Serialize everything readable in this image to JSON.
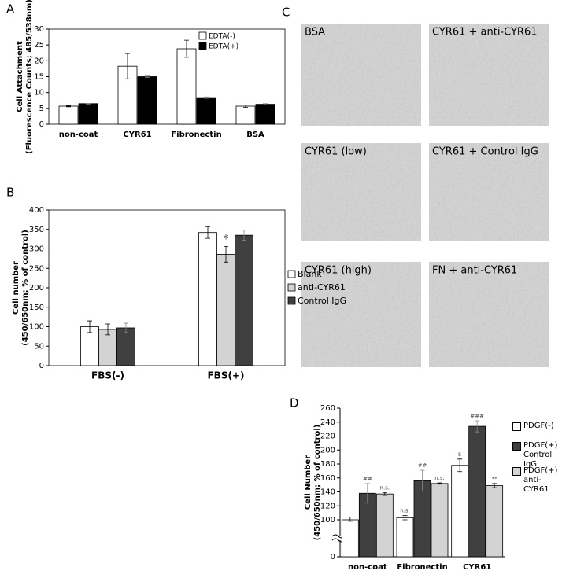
{
  "chart_data": [
    {
      "type": "bar",
      "panel": "A",
      "categories": [
        "non-coat",
        "CYR61",
        "Fibronectin",
        "BSA"
      ],
      "series": [
        {
          "name": "EDTA(-)",
          "color": "#ffffff",
          "values": [
            5.7,
            18.3,
            23.8,
            5.7
          ],
          "errors": [
            0.2,
            4,
            2.7,
            0.4
          ]
        },
        {
          "name": "EDTA(+)",
          "color": "#000000",
          "values": [
            6.5,
            15.0,
            8.4,
            6.3
          ],
          "errors": [
            0.1,
            0.2,
            0.2,
            0.2
          ]
        }
      ],
      "ylabel": [
        "Cell Attachment",
        "(Fluorescence Counts; 485/538nm)"
      ],
      "ylim": [
        0,
        30
      ],
      "yticks": [
        0,
        5,
        10,
        15,
        20,
        25,
        30
      ],
      "frame": true,
      "legend": "top-right"
    },
    {
      "type": "bar",
      "panel": "B",
      "categories": [
        "FBS(-)",
        "FBS(+)"
      ],
      "series": [
        {
          "name": "Blank",
          "color": "#ffffff",
          "values": [
            100,
            342
          ],
          "errors": [
            15,
            15
          ]
        },
        {
          "name": "anti-CYR61",
          "color": "#d3d3d3",
          "values": [
            93,
            286
          ],
          "errors": [
            14,
            20
          ],
          "annotations": [
            null,
            "*"
          ]
        },
        {
          "name": "Control IgG",
          "color": "#404040",
          "values": [
            97,
            335
          ],
          "errors": [
            12,
            13
          ]
        }
      ],
      "ylabel": [
        "Cell number",
        "(450/650nm; % of control)"
      ],
      "ylim": [
        0,
        400
      ],
      "yticks": [
        0,
        50,
        100,
        150,
        200,
        250,
        300,
        350,
        400
      ],
      "frame": true,
      "legend": "right"
    },
    {
      "type": "bar",
      "panel": "D",
      "categories": [
        "non-coat",
        "Fibronectin",
        "CYR61"
      ],
      "series": [
        {
          "name": "PDGF(-)",
          "color": "#ffffff",
          "values": [
            100,
            103,
            178
          ],
          "errors": [
            4,
            3,
            9
          ],
          "annotations": [
            null,
            "n.s.",
            "$"
          ]
        },
        {
          "name": "PDGF(+) Control IgG",
          "color": "#404040",
          "values": [
            138,
            156,
            234
          ],
          "errors": [
            14,
            15,
            8
          ],
          "annotations": [
            "##",
            "##",
            "###"
          ]
        },
        {
          "name": "PDGF(+) anti-CYR61",
          "color": "#d3d3d3",
          "values": [
            137,
            152,
            149
          ],
          "errors": [
            2,
            1,
            3
          ],
          "annotations": [
            "n.s.",
            "n.s.",
            "**"
          ]
        }
      ],
      "ylabel": [
        "Cell Number",
        "(450/650nm; % of control)"
      ],
      "ylim": [
        0,
        260
      ],
      "yticks": [
        0,
        100,
        120,
        140,
        160,
        180,
        200,
        220,
        240,
        260
      ],
      "axis_break": true,
      "frame": false,
      "legend": "right"
    }
  ],
  "panel_c": {
    "label": "C",
    "images": [
      "BSA",
      "CYR61 + anti-CYR61",
      "CYR61 (low)",
      "CYR61 + Control IgG",
      "CYR61 (high)",
      "FN + anti-CYR61"
    ]
  }
}
